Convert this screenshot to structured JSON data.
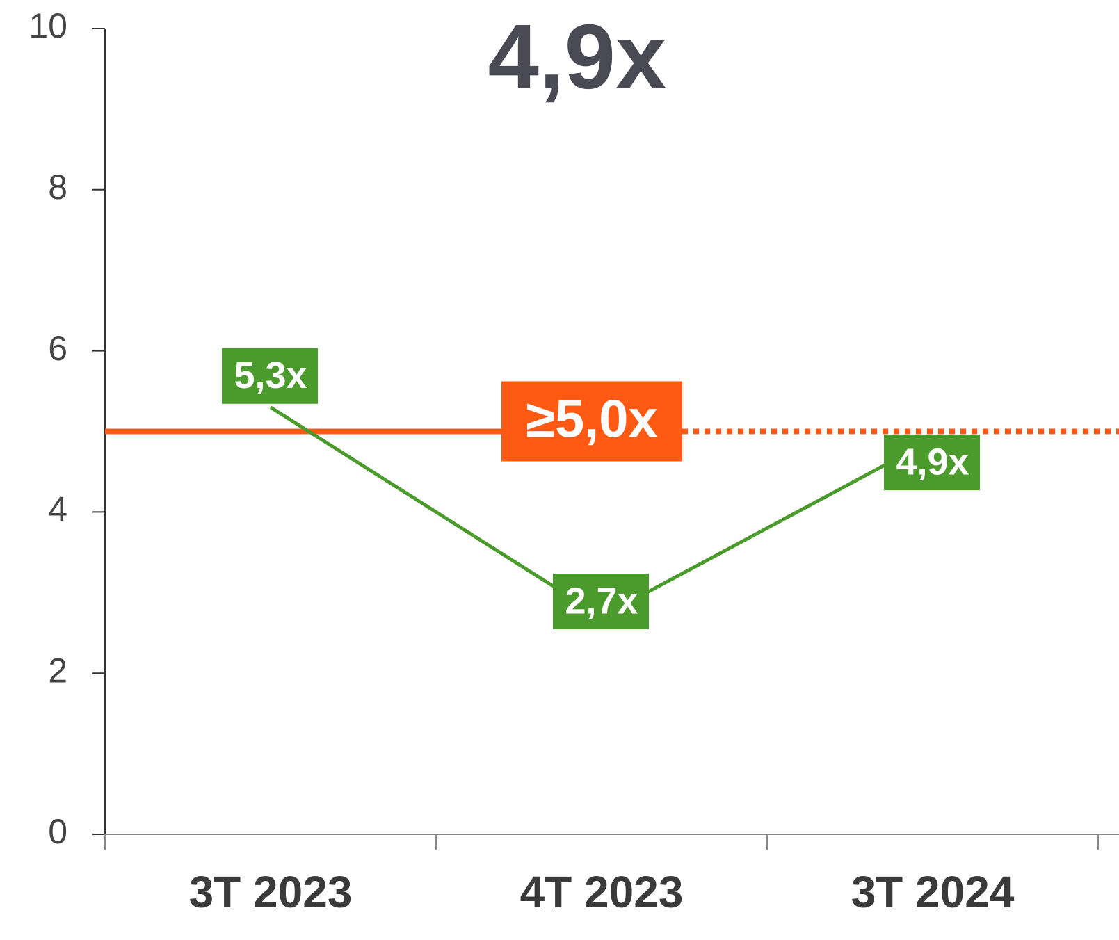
{
  "chart_data": {
    "type": "line",
    "title": "4,9x",
    "categories": [
      "3T 2023",
      "4T 2023",
      "3T 2024"
    ],
    "series": [
      {
        "name": null,
        "color": "#4a9a2c",
        "values": [
          5.3,
          2.7,
          4.9
        ],
        "value_labels": [
          "5,3x",
          "2,7x",
          "4,9x"
        ]
      }
    ],
    "reference_line": {
      "value": 5,
      "label": "≥5,0x",
      "color": "#ff5a14"
    },
    "ylim": [
      0,
      10
    ],
    "yticks": [
      0,
      2,
      4,
      6,
      8,
      10
    ],
    "grid": false
  }
}
